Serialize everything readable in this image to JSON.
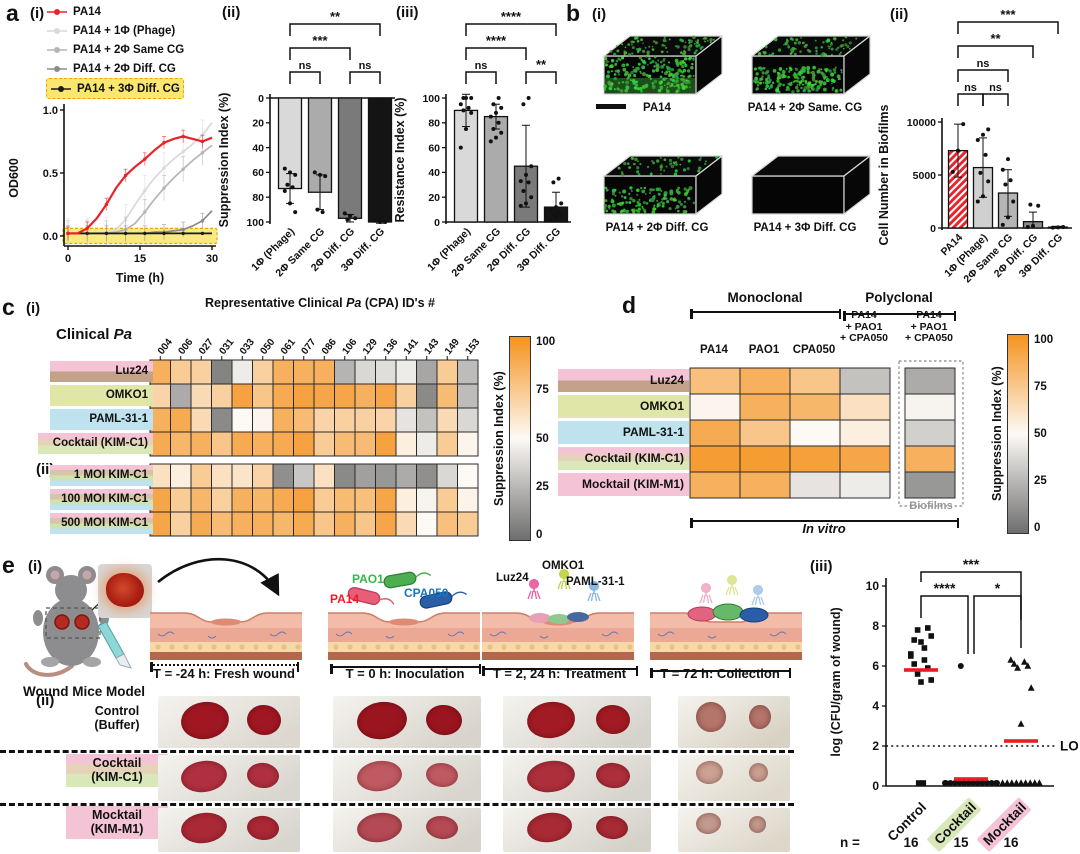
{
  "figure_labels": {
    "a": "a",
    "b": "b",
    "c": "c",
    "d": "d",
    "e": "e",
    "a_i": "(i)",
    "a_ii": "(ii)",
    "a_iii": "(iii)",
    "b_i": "(i)",
    "b_ii": "(ii)",
    "c_i": "(i)",
    "c_ii": "(ii)",
    "e_i": "(i)",
    "e_ii": "(ii)",
    "e_iii": "(iii)"
  },
  "panel_a": {
    "legend": [
      {
        "label": "PA14",
        "color": "#e8232a"
      },
      {
        "label": "PA14 + 1Φ (Phage)",
        "color": "#d9d9d9"
      },
      {
        "label": "PA14 + 2Φ Same CG",
        "color": "#b5b5b5"
      },
      {
        "label": "PA14 + 2Φ Diff. CG",
        "color": "#8c8c8c"
      },
      {
        "label": "PA14 + 3Φ Diff. CG",
        "color": "#1a1a1a",
        "highlight": "#f9e76f"
      }
    ]
  },
  "panel_b": {
    "images": [
      {
        "label": "PA14",
        "density": 0.95
      },
      {
        "label": "PA14 + 2Φ Same. CG",
        "density": 0.8
      },
      {
        "label": "PA14 + 2Φ Diff. CG",
        "density": 0.55
      },
      {
        "label": "PA14 + 3Φ Diff. CG",
        "density": 0
      }
    ]
  },
  "panel_c": {
    "title_pre": "Representative Clinical ",
    "title_italic": "Pa",
    "title_post": " (CPA) ID's #",
    "ylabel_pre": "Clinical ",
    "ylabel_italic": "Pa",
    "colorbar_label": "Suppression Index (%)",
    "colorbar_ticks": [
      "100",
      "75",
      "50",
      "25",
      "0"
    ]
  },
  "panel_d": {
    "group_monoclonal": "Monoclonal",
    "group_polyclonal": "Polyclonal",
    "col_headers": [
      "PA14",
      "PAO1",
      "CPA050",
      "PA14\n+ PAO1\n+ CPA050",
      "PA14\n+ PAO1\n+ CPA050"
    ],
    "biofilms_label": "Biofilms",
    "in_vitro_label": "In vitro",
    "colorbar_label": "Suppression Index (%)",
    "colorbar_ticks": [
      "100",
      "75",
      "50",
      "25",
      "0"
    ]
  },
  "panel_e": {
    "wound_model_label": "Wound Mice Model",
    "timeline": [
      "T = -24 h: Fresh wound",
      "T = 0 h: Inoculation",
      "T = 2, 24 h: Treatment",
      "T = 72 h: Collection"
    ],
    "bacteria": [
      {
        "name": "PAO1",
        "color": "#3cb54a"
      },
      {
        "name": "PA14",
        "color": "#ed1c24"
      },
      {
        "name": "CPA050",
        "color": "#1b75bb"
      }
    ],
    "phages": [
      {
        "name": "Luz24"
      },
      {
        "name": "OMKO1"
      },
      {
        "name": "PAML-31-1"
      }
    ],
    "rows": [
      {
        "line1": "Control",
        "line2": "(Buffer)"
      },
      {
        "line1": "Cocktail",
        "line2": "(KIM-C1)"
      },
      {
        "line1": "Mocktail",
        "line2": "(KIM-M1)"
      }
    ],
    "photos": [
      [
        {
          "bg": "#dcd8d0",
          "wound": "#a01722",
          "s": 1
        },
        {
          "bg": "#d8d4cc",
          "wound": "#9b1520",
          "s": 1
        },
        {
          "bg": "#d5d3cb",
          "wound": "#a21b24",
          "s": 0.95
        },
        {
          "bg": "#d8d2c4",
          "wound": "#b4756a",
          "s": 0.8
        }
      ],
      [
        {
          "bg": "#d9d6cf",
          "wound": "#b03040",
          "s": 0.95
        },
        {
          "bg": "#d8d5ce",
          "wound": "#c05a62",
          "s": 0.9
        },
        {
          "bg": "#d6d4cc",
          "wound": "#ad2f3c",
          "s": 0.95
        },
        {
          "bg": "#ded9cc",
          "wound": "#caa193",
          "s": 0.7
        }
      ],
      [
        {
          "bg": "#d8d5ce",
          "wound": "#ab2836",
          "s": 0.95
        },
        {
          "bg": "#d7d3cb",
          "wound": "#b54a55",
          "s": 0.9
        },
        {
          "bg": "#d5d2ca",
          "wound": "#a82a35",
          "s": 0.9
        },
        {
          "bg": "#ddd7ca",
          "wound": "#c39a8e",
          "s": 0.65
        }
      ]
    ]
  },
  "chart_data": [
    {
      "id": "od600_growth",
      "type": "line",
      "xlabel": "Time (h)",
      "ylabel": "OD600",
      "xlim": [
        0,
        30
      ],
      "ylim": [
        -0.08,
        1.0
      ],
      "xticks": [
        0,
        15,
        30
      ],
      "yticks": [
        0.0,
        0.5,
        1.0
      ],
      "x": [
        0,
        2,
        4,
        6,
        8,
        10,
        12,
        14,
        16,
        18,
        20,
        22,
        24,
        26,
        28,
        30
      ],
      "series": [
        {
          "name": "PA14",
          "color": "#e8232a",
          "err": 0.05,
          "values": [
            0.02,
            0.02,
            0.06,
            0.14,
            0.25,
            0.38,
            0.48,
            0.55,
            0.61,
            0.68,
            0.74,
            0.77,
            0.79,
            0.77,
            0.75,
            0.78
          ]
        },
        {
          "name": "PA14 + 1Φ (Phage)",
          "color": "#d9d9d9",
          "err": 0.12,
          "values": [
            0.02,
            0.02,
            0.02,
            0.02,
            0.03,
            0.05,
            0.13,
            0.25,
            0.36,
            0.46,
            0.54,
            0.61,
            0.67,
            0.73,
            0.8,
            0.9
          ]
        },
        {
          "name": "PA14 + 2Φ Same CG",
          "color": "#b5b5b5",
          "err": 0.1,
          "values": [
            0.02,
            0.02,
            0.02,
            0.02,
            0.02,
            0.03,
            0.05,
            0.1,
            0.19,
            0.29,
            0.38,
            0.46,
            0.53,
            0.6,
            0.66,
            0.72
          ]
        },
        {
          "name": "PA14 + 2Φ Diff. CG",
          "color": "#8c8c8c",
          "err": 0.06,
          "values": [
            0.02,
            0.02,
            0.02,
            0.02,
            0.02,
            0.02,
            0.02,
            0.02,
            0.02,
            0.03,
            0.03,
            0.04,
            0.05,
            0.08,
            0.12,
            0.2
          ]
        },
        {
          "name": "PA14 + 3Φ Diff. CG",
          "color": "#1a1a1a",
          "err": 0.01,
          "values": [
            0.02,
            0.02,
            0.02,
            0.02,
            0.02,
            0.02,
            0.02,
            0.02,
            0.02,
            0.02,
            0.02,
            0.02,
            0.02,
            0.02,
            0.02,
            0.02
          ]
        }
      ],
      "band": {
        "y": 0.0,
        "half_height": 0.06,
        "color": "#f9e76f",
        "border": "#f0a500"
      }
    },
    {
      "id": "suppression_index",
      "type": "bar",
      "ylabel": "Suppression Index (%)",
      "inverted": true,
      "categories": [
        "1Φ (Phage)",
        "2Φ Same CG",
        "2Φ Diff. CG",
        "3Φ Diff. CG"
      ],
      "values": [
        73,
        76,
        97,
        100
      ],
      "err": [
        12,
        14,
        3,
        1
      ],
      "colors": [
        "#d9d9d9",
        "#ababab",
        "#7a7a7a",
        "#141414"
      ],
      "yticks": [
        0,
        20,
        40,
        60,
        80,
        100
      ],
      "ylim": [
        0,
        100
      ],
      "points": [
        [
          57,
          60,
          62,
          70,
          72,
          75,
          85,
          92
        ],
        [
          60,
          62,
          63,
          90,
          92
        ],
        [
          93,
          95,
          97,
          98
        ],
        [
          99,
          100,
          100
        ]
      ],
      "sig": [
        {
          "a": 0,
          "b": 3,
          "label": "**",
          "level": 0
        },
        {
          "a": 0,
          "b": 2,
          "label": "***",
          "level": 1
        },
        {
          "a": 0,
          "b": 1,
          "label": "ns",
          "level": 2
        },
        {
          "a": 2,
          "b": 3,
          "label": "ns",
          "level": 2
        }
      ]
    },
    {
      "id": "resistance_index",
      "type": "bar",
      "ylabel": "Resistance Index (%)",
      "inverted": false,
      "categories": [
        "1Φ (Phage)",
        "2Φ Same CG",
        "2Φ Diff. CG",
        "3Φ Diff. CG"
      ],
      "values": [
        90,
        85,
        45,
        12
      ],
      "err": [
        13,
        10,
        33,
        12
      ],
      "colors": [
        "#d9d9d9",
        "#ababab",
        "#7a7a7a",
        "#141414"
      ],
      "yticks": [
        0,
        20,
        40,
        60,
        80,
        100
      ],
      "ylim": [
        0,
        100
      ],
      "points": [
        [
          60,
          75,
          88,
          90,
          92,
          95,
          100,
          100,
          100
        ],
        [
          65,
          68,
          72,
          75,
          80,
          85,
          88,
          92,
          95,
          100
        ],
        [
          13,
          15,
          20,
          25,
          32,
          33,
          38,
          45,
          95,
          100
        ],
        [
          2,
          3,
          5,
          6,
          8,
          10,
          12,
          15,
          32,
          35
        ]
      ],
      "sig": [
        {
          "a": 0,
          "b": 3,
          "label": "****",
          "level": 0
        },
        {
          "a": 0,
          "b": 2,
          "label": "****",
          "level": 1
        },
        {
          "a": 0,
          "b": 1,
          "label": "ns",
          "level": 2
        },
        {
          "a": 2,
          "b": 3,
          "label": "**",
          "level": 2
        }
      ]
    },
    {
      "id": "biofilm_cells",
      "type": "bar",
      "ylabel": "Cell Number in Biofilms",
      "inverted": false,
      "categories": [
        "PA14",
        "1Φ (Phage)",
        "2Φ Same CG",
        "2Φ Diff. CG",
        "3Φ Diff. CG"
      ],
      "values": [
        7300,
        5700,
        3300,
        600,
        80
      ],
      "err": [
        2500,
        2800,
        2200,
        900,
        80
      ],
      "colors": [
        "hatch",
        "#d0d0d0",
        "#b5b5b5",
        "#8c8c8c",
        "#3a3a3a"
      ],
      "yticks": [
        0,
        5000,
        10000
      ],
      "ylim": [
        0,
        10000
      ],
      "points": [
        [
          5300,
          7300,
          9800
        ],
        [
          2500,
          3000,
          4400,
          5200,
          6900,
          8300,
          8800,
          9300
        ],
        [
          300,
          1000,
          2500,
          4100,
          4500,
          5500,
          6500
        ],
        [
          100,
          200,
          2100,
          2200
        ],
        [
          30,
          60,
          100
        ]
      ],
      "sig": [
        {
          "a": 0,
          "b": 4,
          "label": "***",
          "level": 0
        },
        {
          "a": 0,
          "b": 3,
          "label": "**",
          "level": 1
        },
        {
          "a": 0,
          "b": 2,
          "label": "ns",
          "level": 2
        },
        {
          "a": 0,
          "b": 1,
          "label": "ns",
          "level": 3
        },
        {
          "a": 1,
          "b": 2,
          "label": "ns",
          "level": 3
        }
      ]
    },
    {
      "id": "clinical_heatmap_i",
      "type": "heatmap",
      "columns": [
        "004",
        "006",
        "027",
        "031",
        "033",
        "050",
        "061",
        "077",
        "086",
        "106",
        "129",
        "136",
        "141",
        "143",
        "149",
        "153"
      ],
      "rows": [
        "Luz24",
        "OMKO1",
        "PAML-31-1",
        "Cocktail (KIM-C1)"
      ],
      "values": [
        [
          85,
          72,
          70,
          8,
          45,
          70,
          85,
          85,
          85,
          25,
          38,
          40,
          45,
          20,
          72,
          28
        ],
        [
          68,
          22,
          65,
          70,
          92,
          75,
          88,
          92,
          90,
          90,
          85,
          90,
          70,
          10,
          80,
          28
        ],
        [
          85,
          88,
          65,
          10,
          50,
          52,
          85,
          80,
          68,
          70,
          70,
          68,
          42,
          30,
          65,
          38
        ],
        [
          88,
          82,
          85,
          75,
          88,
          85,
          88,
          92,
          72,
          80,
          80,
          92,
          55,
          45,
          72,
          52
        ]
      ],
      "scale": {
        "label": "Suppression Index (%)",
        "max": 100,
        "min": 0
      }
    },
    {
      "id": "clinical_heatmap_ii",
      "type": "heatmap",
      "columns": [
        "004",
        "006",
        "027",
        "031",
        "033",
        "050",
        "061",
        "077",
        "086",
        "106",
        "129",
        "136",
        "141",
        "143",
        "149",
        "153"
      ],
      "rows": [
        "1 MOI KIM-C1",
        "100 MOI KIM-C1",
        "500 MOI KIM-C1"
      ],
      "values": [
        [
          62,
          55,
          72,
          62,
          60,
          68,
          12,
          32,
          62,
          10,
          18,
          15,
          22,
          12,
          38,
          50
        ],
        [
          90,
          72,
          82,
          70,
          85,
          82,
          88,
          92,
          72,
          80,
          78,
          90,
          55,
          48,
          72,
          53
        ],
        [
          90,
          70,
          88,
          80,
          85,
          85,
          82,
          88,
          75,
          85,
          75,
          90,
          65,
          50,
          78,
          72
        ]
      ],
      "scale": {
        "label": "Suppression Index (%)",
        "max": 100,
        "min": 0
      }
    },
    {
      "id": "host_range_heatmap",
      "type": "heatmap",
      "columns": [
        "PA14",
        "PAO1",
        "CPA050",
        "PA14 + PAO1 + CPA050",
        "PA14 + PAO1 + CPA050 (Biofilms)"
      ],
      "rows": [
        "Luz24",
        "OMKO1",
        "PAML-31-1",
        "Cocktail (KIM-C1)",
        "Mocktail (KIM-M1)"
      ],
      "values": [
        [
          78,
          85,
          75,
          30,
          22
        ],
        [
          52,
          85,
          82,
          62,
          48
        ],
        [
          88,
          75,
          50,
          55,
          35
        ],
        [
          95,
          95,
          93,
          90,
          85
        ],
        [
          85,
          85,
          42,
          45,
          15
        ]
      ],
      "scale": {
        "label": "Suppression Index (%)",
        "max": 100,
        "min": 0
      }
    },
    {
      "id": "wound_cfu",
      "type": "scatter",
      "ylabel": "log (CFU/gram of wound)",
      "ylim": [
        0,
        10
      ],
      "yticks": [
        0,
        2,
        4,
        6,
        8,
        10
      ],
      "lod": 2,
      "lod_label": "LOD",
      "n_label": "n =",
      "groups": [
        {
          "name": "Control",
          "marker": "square",
          "n": 16,
          "median": 5.8,
          "highlight": null,
          "points": [
            6.6,
            6.9,
            7.3,
            7.9,
            7.8,
            7.5,
            7.2,
            6.5,
            6.3,
            6.1,
            5.9,
            5.6,
            5.3,
            5.2,
            0,
            0
          ]
        },
        {
          "name": "Cocktail",
          "marker": "circle",
          "n": 15,
          "median": 0.35,
          "highlight": "#d8e8b8",
          "points": [
            6.0,
            0,
            0,
            0,
            0,
            0,
            0,
            0,
            0,
            0,
            0,
            0,
            0,
            0,
            0
          ]
        },
        {
          "name": "Mocktail",
          "marker": "triangle",
          "n": 16,
          "median": 2.25,
          "highlight": "#f6c2d8",
          "points": [
            6.3,
            6.2,
            6.1,
            6.0,
            5.9,
            4.9,
            3.1,
            0,
            0,
            0,
            0,
            0,
            0,
            0,
            0,
            0
          ]
        }
      ],
      "sig": [
        {
          "a": 0,
          "b": 2,
          "label": "***",
          "level": 0,
          "ea": 10,
          "eb": 48
        },
        {
          "a": 0,
          "b": 1,
          "label": "****",
          "level": 1,
          "ea": 22,
          "eb": 58
        },
        {
          "a": 1,
          "b": 2,
          "label": "*",
          "level": 1,
          "ea": 58,
          "eb": 52
        }
      ]
    }
  ]
}
